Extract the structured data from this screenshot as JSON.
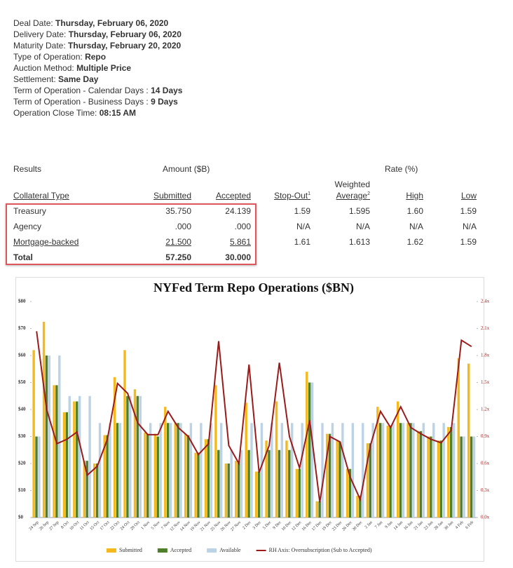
{
  "details": [
    {
      "label": "Deal Date:",
      "value": "Thursday, February 06, 2020"
    },
    {
      "label": "Delivery Date:",
      "value": "Thursday, February 06, 2020"
    },
    {
      "label": "Maturity Date:",
      "value": "Thursday, February 20, 2020"
    },
    {
      "label": "Type of Operation:",
      "value": "Repo"
    },
    {
      "label": "Auction Method:",
      "value": "Multiple Price"
    },
    {
      "label": "Settlement:",
      "value": "Same Day"
    },
    {
      "label": "Term of Operation - Calendar Days :",
      "value": "14 Days"
    },
    {
      "label": "Term of Operation - Business Days :",
      "value": "9 Days"
    },
    {
      "label": "Operation Close Time:",
      "value": "08:15 AM"
    }
  ],
  "table": {
    "groups": [
      "Results",
      "Amount ($B)",
      "Rate (%)"
    ],
    "headers": [
      {
        "label": "Collateral Type"
      },
      {
        "label": "Submitted"
      },
      {
        "label": "Accepted"
      },
      {
        "label": "Stop-Out",
        "note": "1"
      },
      {
        "label": "Average",
        "above": "Weighted",
        "note": "2"
      },
      {
        "label": "High"
      },
      {
        "label": "Low"
      }
    ],
    "rows": [
      [
        "Treasury",
        "35.750",
        "24.139",
        "1.59",
        "1.595",
        "1.60",
        "1.59"
      ],
      [
        "Agency",
        ".000",
        ".000",
        "N/A",
        "N/A",
        "N/A",
        "N/A"
      ],
      [
        "Mortgage-backed",
        "21.500",
        "5.861",
        "1.61",
        "1.613",
        "1.62",
        "1.59"
      ],
      [
        "Total",
        "57.250",
        "30.000",
        "",
        "",
        "",
        ""
      ]
    ]
  },
  "chart_data": {
    "type": "bar",
    "title": "NYFed Term Repo Operations ($BN)",
    "categories": [
      "24 Sep",
      "26 Sep",
      "27 Sep",
      "8 Oct",
      "10 Oct",
      "11 Oct",
      "15 Oct",
      "17 Oct",
      "22 Oct",
      "24 Oct",
      "29 Oct",
      "1 Nov",
      "5 Nov",
      "7 Nov",
      "12 Nov",
      "14 Nov",
      "19 Nov",
      "21 Nov",
      "25 Nov",
      "26 Nov",
      "27 Nov",
      "2 Dec",
      "3 Dec",
      "5 Dec",
      "9 Dec",
      "10 Dec",
      "12 Dec",
      "16 Dec",
      "17 Dec",
      "19 Dec",
      "23 Dec",
      "26 Dec",
      "30 Dec",
      "2 Jan",
      "7 Jan",
      "9 Jan",
      "14 Jan",
      "16 Jan",
      "21 Jan",
      "23 Jan",
      "28 Jan",
      "30 Jan",
      "4 Feb",
      "6 Feb"
    ],
    "series": [
      {
        "name": "Submitted",
        "color": "#f5b91e",
        "values": [
          62,
          72.5,
          49,
          39,
          43,
          21,
          20,
          30.5,
          52,
          62,
          47.5,
          31.5,
          31,
          41,
          35,
          31,
          24,
          29,
          49,
          20,
          21,
          42.5,
          17,
          28.5,
          43,
          28.5,
          18,
          54,
          6,
          31,
          28.5,
          18,
          8,
          27.5,
          41,
          34,
          43,
          35,
          32,
          30,
          28.5,
          33.5,
          59,
          57
        ]
      },
      {
        "name": "Accepted",
        "color": "#4f7f2a",
        "values": [
          30,
          60,
          49,
          39,
          43,
          21,
          20,
          30.5,
          35,
          45,
          45,
          31,
          30,
          35,
          35,
          30.5,
          24,
          29,
          25,
          20,
          21,
          25,
          17,
          25,
          25,
          25,
          18,
          50,
          6,
          31,
          28,
          18,
          8,
          27.5,
          35,
          34,
          35,
          35,
          32,
          30,
          28.5,
          33.5,
          30,
          30
        ]
      },
      {
        "name": "Available",
        "color": "#bcd3e6",
        "values": [
          30,
          60,
          60,
          45,
          45,
          45,
          35,
          35,
          35,
          45,
          45,
          35,
          35,
          35,
          35,
          35,
          35,
          35,
          35,
          25,
          25,
          35,
          35,
          35,
          35,
          35,
          35,
          50,
          35,
          35,
          35,
          35,
          35,
          35,
          35,
          35,
          35,
          35,
          35,
          35,
          35,
          35,
          30,
          30
        ]
      },
      {
        "name": "RH Axis: Oversubscription (Sub to Accepted)",
        "color": "#9b1b1b",
        "axis": "y2",
        "type": "line",
        "values": [
          2.07,
          1.2,
          0.82,
          0.87,
          0.95,
          0.47,
          0.57,
          0.87,
          1.49,
          1.38,
          1.05,
          0.92,
          0.92,
          1.18,
          1.0,
          0.9,
          0.7,
          0.82,
          1.96,
          0.8,
          0.6,
          1.7,
          0.5,
          0.8,
          1.72,
          0.9,
          0.55,
          1.08,
          0.17,
          0.9,
          0.84,
          0.45,
          0.2,
          0.8,
          1.18,
          1.0,
          1.23,
          1.0,
          0.93,
          0.87,
          0.83,
          0.97,
          1.97,
          1.9
        ]
      }
    ],
    "ylim": [
      0,
      80
    ],
    "yticks": [
      {
        "value": 0,
        "label": "$0"
      },
      {
        "value": 10,
        "label": "$10"
      },
      {
        "value": 20,
        "label": "$20"
      },
      {
        "value": 30,
        "label": "$30"
      },
      {
        "value": 40,
        "label": "$40"
      },
      {
        "value": 50,
        "label": "$50"
      },
      {
        "value": 60,
        "label": "$60"
      },
      {
        "value": 70,
        "label": "$70"
      },
      {
        "value": 80,
        "label": "$80"
      }
    ],
    "y2lim": [
      0,
      2.4
    ],
    "y2ticks": [
      {
        "value": 0,
        "label": "0.0x"
      },
      {
        "value": 0.3,
        "label": "0.3x"
      },
      {
        "value": 0.6,
        "label": "0.6x"
      },
      {
        "value": 0.9,
        "label": "0.9x"
      },
      {
        "value": 1.2,
        "label": "1.2x"
      },
      {
        "value": 1.5,
        "label": "1.5x"
      },
      {
        "value": 1.8,
        "label": "1.8x"
      },
      {
        "value": 2.1,
        "label": "2.1x"
      },
      {
        "value": 2.4,
        "label": "2.4x"
      }
    ],
    "legend": "bottom"
  }
}
